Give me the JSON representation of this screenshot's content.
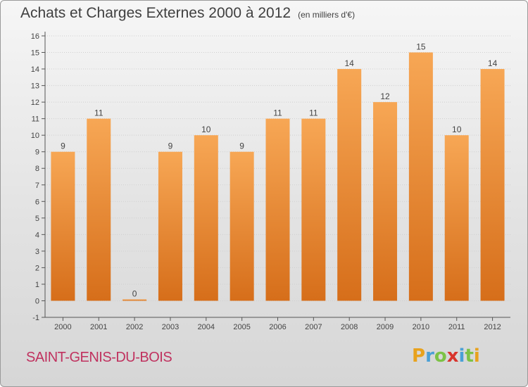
{
  "header": {
    "title": "Achats et Charges Externes 2000 à 2012",
    "unit": "(en milliers d'€)"
  },
  "footer": {
    "commune": "SAINT-GENIS-DU-BOIS",
    "logo_letters": [
      "P",
      "r",
      "o",
      "x",
      "i",
      "t",
      "i"
    ],
    "logo_colors": [
      "#e8a21d",
      "#4aa0d6",
      "#7cc246",
      "#d8342c",
      "#4aa0d6",
      "#7cc246",
      "#e8a21d"
    ]
  },
  "colors": {
    "bar_top": "#f7a755",
    "bar_bottom": "#d66e1a",
    "axis": "#555555",
    "grid": "#cfcfcf"
  },
  "chart_data": {
    "type": "bar",
    "title": "Achats et Charges Externes 2000 à 2012",
    "subtitle": "(en milliers d'€)",
    "categories": [
      "2000",
      "2001",
      "2002",
      "2003",
      "2004",
      "2005",
      "2006",
      "2007",
      "2008",
      "2009",
      "2010",
      "2011",
      "2012"
    ],
    "values": [
      9,
      11,
      0,
      9,
      10,
      9,
      11,
      11,
      14,
      12,
      15,
      10,
      14
    ],
    "ylim": [
      -1,
      16
    ],
    "yticks": [
      -1,
      0,
      1,
      2,
      3,
      4,
      5,
      6,
      7,
      8,
      9,
      10,
      11,
      12,
      13,
      14,
      15,
      16
    ],
    "grid": true,
    "legend": "none"
  }
}
